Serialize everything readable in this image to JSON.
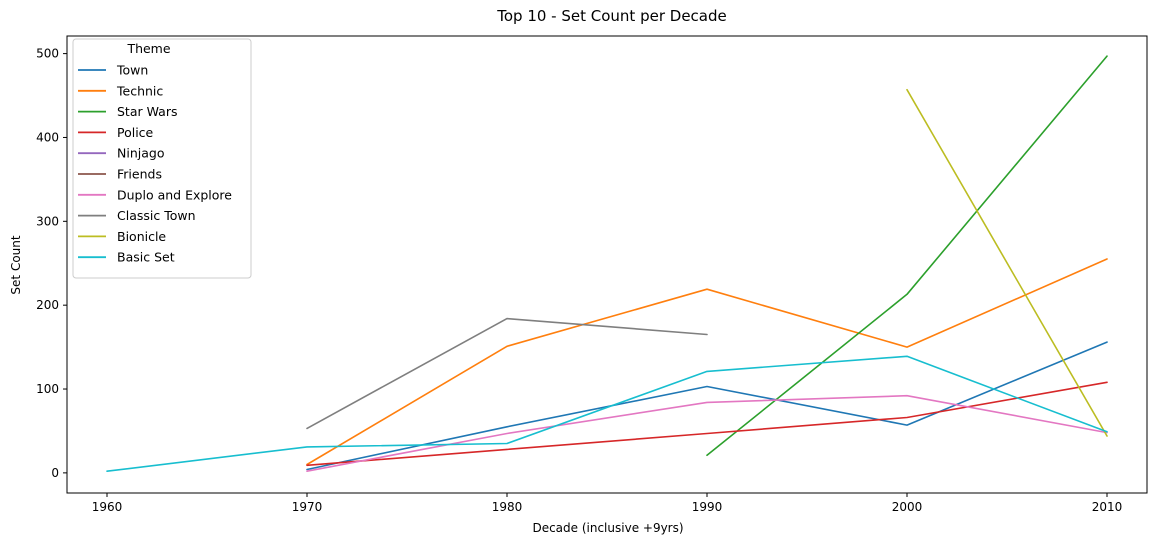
{
  "chart_data": {
    "type": "line",
    "title": "Top 10 - Set Count per Decade",
    "xlabel": "Decade (inclusive +9yrs)",
    "ylabel": "Set Count",
    "x": [
      1960,
      1970,
      1980,
      1990,
      2000,
      2010
    ],
    "xlim": [
      1958,
      2012
    ],
    "ylim": [
      -24,
      521
    ],
    "xticks": [
      1960,
      1970,
      1980,
      1990,
      2000,
      2010
    ],
    "yticks": [
      0,
      100,
      200,
      300,
      400,
      500
    ],
    "legend_title": "Theme",
    "legend_position": "top-left",
    "grid": false,
    "series": [
      {
        "name": "Town",
        "color": "#1f77b4",
        "points": [
          [
            1970,
            4
          ],
          [
            1980,
            55
          ],
          [
            1990,
            103
          ],
          [
            2000,
            57
          ],
          [
            2010,
            156
          ]
        ]
      },
      {
        "name": "Technic",
        "color": "#ff7f0e",
        "points": [
          [
            1970,
            10
          ],
          [
            1980,
            151
          ],
          [
            1990,
            219
          ],
          [
            2000,
            150
          ],
          [
            2010,
            255
          ]
        ]
      },
      {
        "name": "Star Wars",
        "color": "#2ca02c",
        "points": [
          [
            1990,
            21
          ],
          [
            2000,
            213
          ],
          [
            2010,
            497
          ]
        ]
      },
      {
        "name": "Police",
        "color": "#d62728",
        "points": [
          [
            1970,
            9
          ],
          [
            1980,
            28
          ],
          [
            1990,
            47
          ],
          [
            2000,
            66
          ],
          [
            2010,
            108
          ]
        ]
      },
      {
        "name": "Ninjago",
        "color": "#9467bd",
        "points": []
      },
      {
        "name": "Friends",
        "color": "#8c564b",
        "points": []
      },
      {
        "name": "Duplo and Explore",
        "color": "#e377c2",
        "points": [
          [
            1970,
            2
          ],
          [
            1980,
            47
          ],
          [
            1990,
            84
          ],
          [
            2000,
            92
          ],
          [
            2010,
            48
          ]
        ]
      },
      {
        "name": "Classic Town",
        "color": "#7f7f7f",
        "points": [
          [
            1970,
            53
          ],
          [
            1980,
            184
          ],
          [
            1990,
            165
          ]
        ]
      },
      {
        "name": "Bionicle",
        "color": "#bcbd22",
        "points": [
          [
            2000,
            457
          ],
          [
            2010,
            44
          ]
        ]
      },
      {
        "name": "Basic Set",
        "color": "#17becf",
        "points": [
          [
            1960,
            2
          ],
          [
            1970,
            31
          ],
          [
            1980,
            35
          ],
          [
            1990,
            121
          ],
          [
            2000,
            139
          ],
          [
            2010,
            49
          ]
        ]
      }
    ]
  }
}
